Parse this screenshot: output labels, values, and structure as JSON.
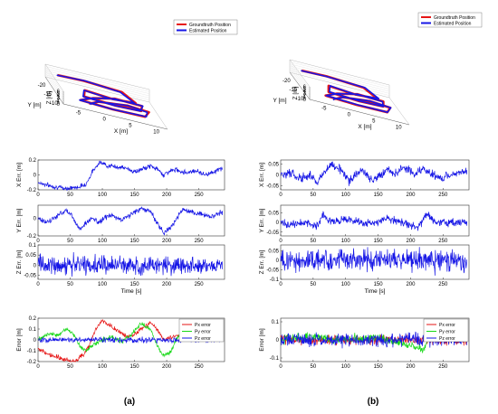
{
  "captions": {
    "a": "(a)",
    "b": "(b)"
  },
  "colors": {
    "blue": "#1616e6",
    "red": "#e61616",
    "green": "#17d817"
  },
  "chart_data": [
    {
      "panel": "a",
      "type": "line3d",
      "xlabel": "X [m]",
      "ylabel": "Y [m]",
      "zlabel": "Z [m]",
      "x_ticks": [
        "-5",
        "0",
        "5",
        "10"
      ],
      "y_ticks": [
        "-20",
        "-15",
        "-10"
      ],
      "z_ticks": [
        "0",
        "1",
        "2",
        "3",
        "4",
        "5",
        "6"
      ],
      "series": [
        {
          "name": "Groundtruth Position",
          "color": "#e61616"
        },
        {
          "name": "Estimated Position",
          "color": "#1616e6"
        }
      ]
    },
    {
      "panel": "b",
      "type": "line3d",
      "xlabel": "X [m]",
      "ylabel": "Y [m]",
      "zlabel": "Z [m]",
      "x_ticks": [
        "-5",
        "0",
        "5",
        "10"
      ],
      "y_ticks": [
        "-20",
        "-15",
        "-10"
      ],
      "z_ticks": [
        "0",
        "1",
        "2",
        "3",
        "4",
        "5",
        "6"
      ],
      "series": [
        {
          "name": "Groundtruth Position",
          "color": "#e61616"
        },
        {
          "name": "Estimated Position",
          "color": "#1616e6"
        }
      ]
    },
    {
      "panel": "a-x",
      "type": "line",
      "ylabel": "X Err. [m]",
      "xlim": [
        0,
        290
      ],
      "ylim": [
        -0.2,
        0.2
      ],
      "yticks": [
        "-0.2",
        "0",
        "0.2"
      ],
      "xticks": [
        0,
        50,
        100,
        150,
        200,
        250
      ],
      "series": [
        {
          "color": "#1616e6",
          "amp": 0.03,
          "points": [
            [
              0,
              -0.1
            ],
            [
              20,
              -0.15
            ],
            [
              40,
              -0.18
            ],
            [
              60,
              -0.17
            ],
            [
              75,
              -0.12
            ],
            [
              85,
              0.05
            ],
            [
              95,
              0.17
            ],
            [
              110,
              0.12
            ],
            [
              130,
              0.1
            ],
            [
              140,
              0.08
            ],
            [
              150,
              0.04
            ],
            [
              160,
              0.07
            ],
            [
              175,
              0.12
            ],
            [
              185,
              0.08
            ],
            [
              195,
              0.0
            ],
            [
              205,
              0.05
            ],
            [
              215,
              0.07
            ],
            [
              230,
              0.03
            ],
            [
              245,
              0.06
            ],
            [
              260,
              0.0
            ],
            [
              275,
              0.05
            ],
            [
              287,
              0.09
            ]
          ]
        }
      ]
    },
    {
      "panel": "a-y",
      "type": "line",
      "ylabel": "Y Err. [m]",
      "xlim": [
        0,
        290
      ],
      "ylim": [
        -0.2,
        0.15
      ],
      "yticks": [
        "-0.2",
        "0"
      ],
      "xticks": [
        0,
        50,
        100,
        150,
        200,
        250
      ],
      "series": [
        {
          "color": "#1616e6",
          "amp": 0.03,
          "points": [
            [
              0,
              0.0
            ],
            [
              15,
              -0.05
            ],
            [
              30,
              0.03
            ],
            [
              45,
              0.1
            ],
            [
              55,
              0.0
            ],
            [
              65,
              -0.12
            ],
            [
              75,
              -0.05
            ],
            [
              85,
              0.0
            ],
            [
              95,
              -0.05
            ],
            [
              105,
              0.02
            ],
            [
              115,
              0.03
            ],
            [
              130,
              -0.02
            ],
            [
              145,
              0.05
            ],
            [
              160,
              0.11
            ],
            [
              175,
              0.08
            ],
            [
              185,
              -0.05
            ],
            [
              195,
              -0.16
            ],
            [
              205,
              -0.12
            ],
            [
              215,
              0.0
            ],
            [
              225,
              0.1
            ],
            [
              240,
              0.06
            ],
            [
              255,
              0.05
            ],
            [
              270,
              0.02
            ],
            [
              287,
              0.08
            ]
          ]
        }
      ]
    },
    {
      "panel": "a-z",
      "type": "line",
      "ylabel": "Z Err. [m]",
      "xlabel": "Time [s]",
      "xlim": [
        0,
        290
      ],
      "ylim": [
        -0.07,
        0.1
      ],
      "yticks": [
        "-0.05",
        "0",
        "0.05",
        "0.1"
      ],
      "xticks": [
        0,
        50,
        100,
        150,
        200,
        250
      ],
      "series": [
        {
          "color": "#1616e6",
          "amp": 0.045,
          "points": [
            [
              0,
              0.0
            ],
            [
              287,
              0.0
            ]
          ]
        }
      ]
    },
    {
      "panel": "b-x",
      "type": "line",
      "ylabel": "X Err. [m]",
      "xlim": [
        0,
        290
      ],
      "ylim": [
        -0.07,
        0.07
      ],
      "yticks": [
        "-0.05",
        "0",
        "0.05"
      ],
      "xticks": [
        0,
        50,
        100,
        150,
        200,
        250
      ],
      "series": [
        {
          "color": "#1616e6",
          "amp": 0.02,
          "points": [
            [
              0,
              0.0
            ],
            [
              15,
              0.01
            ],
            [
              30,
              -0.02
            ],
            [
              45,
              0.0
            ],
            [
              55,
              -0.04
            ],
            [
              65,
              0.01
            ],
            [
              80,
              0.05
            ],
            [
              95,
              0.02
            ],
            [
              105,
              -0.03
            ],
            [
              115,
              0.0
            ],
            [
              125,
              0.02
            ],
            [
              140,
              -0.02
            ],
            [
              155,
              0.0
            ],
            [
              165,
              0.03
            ],
            [
              175,
              0.0
            ],
            [
              190,
              0.04
            ],
            [
              205,
              0.0
            ],
            [
              220,
              0.03
            ],
            [
              235,
              0.0
            ],
            [
              250,
              -0.02
            ],
            [
              265,
              0.01
            ],
            [
              287,
              0.01
            ]
          ]
        }
      ]
    },
    {
      "panel": "b-y",
      "type": "line",
      "ylabel": "Y Err. [m]",
      "xlim": [
        0,
        290
      ],
      "ylim": [
        -0.07,
        0.09
      ],
      "yticks": [
        "-0.05",
        "0",
        "0.05"
      ],
      "xticks": [
        0,
        50,
        100,
        150,
        200,
        250
      ],
      "series": [
        {
          "color": "#1616e6",
          "amp": 0.02,
          "points": [
            [
              0,
              0.0
            ],
            [
              20,
              -0.01
            ],
            [
              40,
              0.0
            ],
            [
              55,
              -0.02
            ],
            [
              65,
              0.04
            ],
            [
              80,
              0.0
            ],
            [
              100,
              0.02
            ],
            [
              120,
              0.0
            ],
            [
              140,
              -0.01
            ],
            [
              165,
              0.02
            ],
            [
              190,
              0.0
            ],
            [
              210,
              -0.03
            ],
            [
              225,
              0.04
            ],
            [
              240,
              0.0
            ],
            [
              260,
              0.0
            ],
            [
              287,
              0.0
            ]
          ]
        }
      ]
    },
    {
      "panel": "b-z",
      "type": "line",
      "ylabel": "Z Err. [m]",
      "xlabel": "Time [s]",
      "xlim": [
        0,
        290
      ],
      "ylim": [
        -0.1,
        0.08
      ],
      "yticks": [
        "-0.1",
        "-0.05",
        "0",
        "0.05"
      ],
      "xticks": [
        0,
        50,
        100,
        150,
        200,
        250
      ],
      "series": [
        {
          "color": "#1616e6",
          "amp": 0.06,
          "points": [
            [
              0,
              0.0
            ],
            [
              287,
              0.0
            ]
          ]
        }
      ]
    },
    {
      "panel": "a-p",
      "type": "line",
      "ylabel": "Error [m]",
      "xlim": [
        0,
        290
      ],
      "ylim": [
        -0.2,
        0.2
      ],
      "yticks": [
        "-0.2",
        "-0.1",
        "0",
        "0.1",
        "0.2"
      ],
      "xticks": [
        0,
        50,
        100,
        150,
        200,
        250
      ],
      "legend": "top-right",
      "series": [
        {
          "name": "Px error",
          "color": "#e61616",
          "amp": 0.02,
          "points": [
            [
              0,
              -0.08
            ],
            [
              20,
              -0.14
            ],
            [
              40,
              -0.18
            ],
            [
              55,
              -0.2
            ],
            [
              70,
              -0.14
            ],
            [
              80,
              -0.05
            ],
            [
              90,
              0.1
            ],
            [
              100,
              0.18
            ],
            [
              115,
              0.12
            ],
            [
              125,
              0.08
            ],
            [
              140,
              0.03
            ],
            [
              150,
              0.05
            ],
            [
              165,
              0.12
            ],
            [
              175,
              0.16
            ],
            [
              185,
              0.1
            ],
            [
              195,
              0.0
            ],
            [
              205,
              0.02
            ],
            [
              215,
              0.05
            ],
            [
              230,
              0.03
            ],
            [
              245,
              0.02
            ],
            [
              260,
              0.02
            ],
            [
              287,
              0.05
            ]
          ]
        },
        {
          "name": "Py error",
          "color": "#17d817",
          "amp": 0.02,
          "points": [
            [
              0,
              0.0
            ],
            [
              15,
              0.06
            ],
            [
              30,
              0.04
            ],
            [
              45,
              0.1
            ],
            [
              55,
              0.05
            ],
            [
              65,
              -0.06
            ],
            [
              75,
              -0.1
            ],
            [
              85,
              -0.05
            ],
            [
              100,
              0.0
            ],
            [
              115,
              0.03
            ],
            [
              130,
              -0.02
            ],
            [
              145,
              0.05
            ],
            [
              160,
              0.15
            ],
            [
              175,
              0.1
            ],
            [
              185,
              -0.05
            ],
            [
              195,
              -0.15
            ],
            [
              205,
              -0.12
            ],
            [
              215,
              0.0
            ],
            [
              225,
              0.1
            ],
            [
              240,
              0.06
            ],
            [
              255,
              0.04
            ],
            [
              270,
              0.02
            ],
            [
              287,
              0.04
            ]
          ]
        },
        {
          "name": "Pz error",
          "color": "#1616e6",
          "amp": 0.025,
          "points": [
            [
              0,
              0.0
            ],
            [
              287,
              0.0
            ]
          ]
        }
      ]
    },
    {
      "panel": "b-p",
      "type": "line",
      "ylabel": "Error [m]",
      "xlim": [
        0,
        290
      ],
      "ylim": [
        -0.12,
        0.12
      ],
      "yticks": [
        "-0.1",
        "0",
        "0.1"
      ],
      "xticks": [
        0,
        50,
        100,
        150,
        200,
        250
      ],
      "legend": "top-right",
      "series": [
        {
          "name": "Px error",
          "color": "#e61616",
          "amp": 0.025,
          "points": [
            [
              0,
              0.0
            ],
            [
              287,
              0.0
            ]
          ]
        },
        {
          "name": "Py error",
          "color": "#17d817",
          "amp": 0.025,
          "points": [
            [
              0,
              0.0
            ],
            [
              60,
              0.02
            ],
            [
              80,
              0.0
            ],
            [
              150,
              0.01
            ],
            [
              200,
              -0.03
            ],
            [
              220,
              -0.05
            ],
            [
              235,
              0.05
            ],
            [
              250,
              0.02
            ],
            [
              287,
              0.0
            ]
          ]
        },
        {
          "name": "Pz error",
          "color": "#1616e6",
          "amp": 0.035,
          "points": [
            [
              0,
              0.0
            ],
            [
              287,
              0.0
            ]
          ]
        }
      ]
    }
  ]
}
